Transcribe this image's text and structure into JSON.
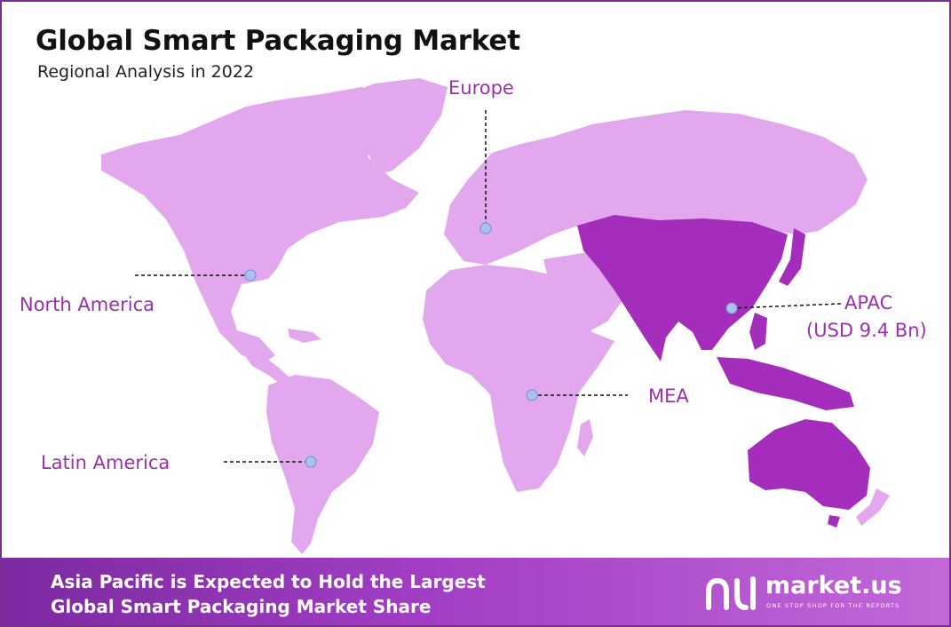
{
  "header": {
    "title": "Global Smart Packaging Market",
    "subtitle": "Regional Analysis in 2022"
  },
  "regions": [
    {
      "name": "Europe",
      "value": "",
      "highlighted": false
    },
    {
      "name": "North America",
      "value": "",
      "highlighted": false
    },
    {
      "name": "APAC",
      "value": "(USD 9.4 Bn)",
      "highlighted": true
    },
    {
      "name": "MEA",
      "value": "",
      "highlighted": false
    },
    {
      "name": "Latin America",
      "value": "",
      "highlighted": false
    }
  ],
  "footer": {
    "line1": "Asia Pacific is Expected to Hold the Largest",
    "line2": "Global Smart Packaging Market Share"
  },
  "brand": {
    "name": "market.us",
    "tagline": "ONE STOP SHOP FOR THE REPORTS"
  },
  "colors": {
    "land": "#e3a7ee",
    "highlight": "#a42dbb",
    "label": "#9b2fae",
    "marker": "#a9c2f2",
    "footer_start": "#7b2aa0",
    "footer_end": "#c268d8",
    "border": "#7a2f8f"
  }
}
